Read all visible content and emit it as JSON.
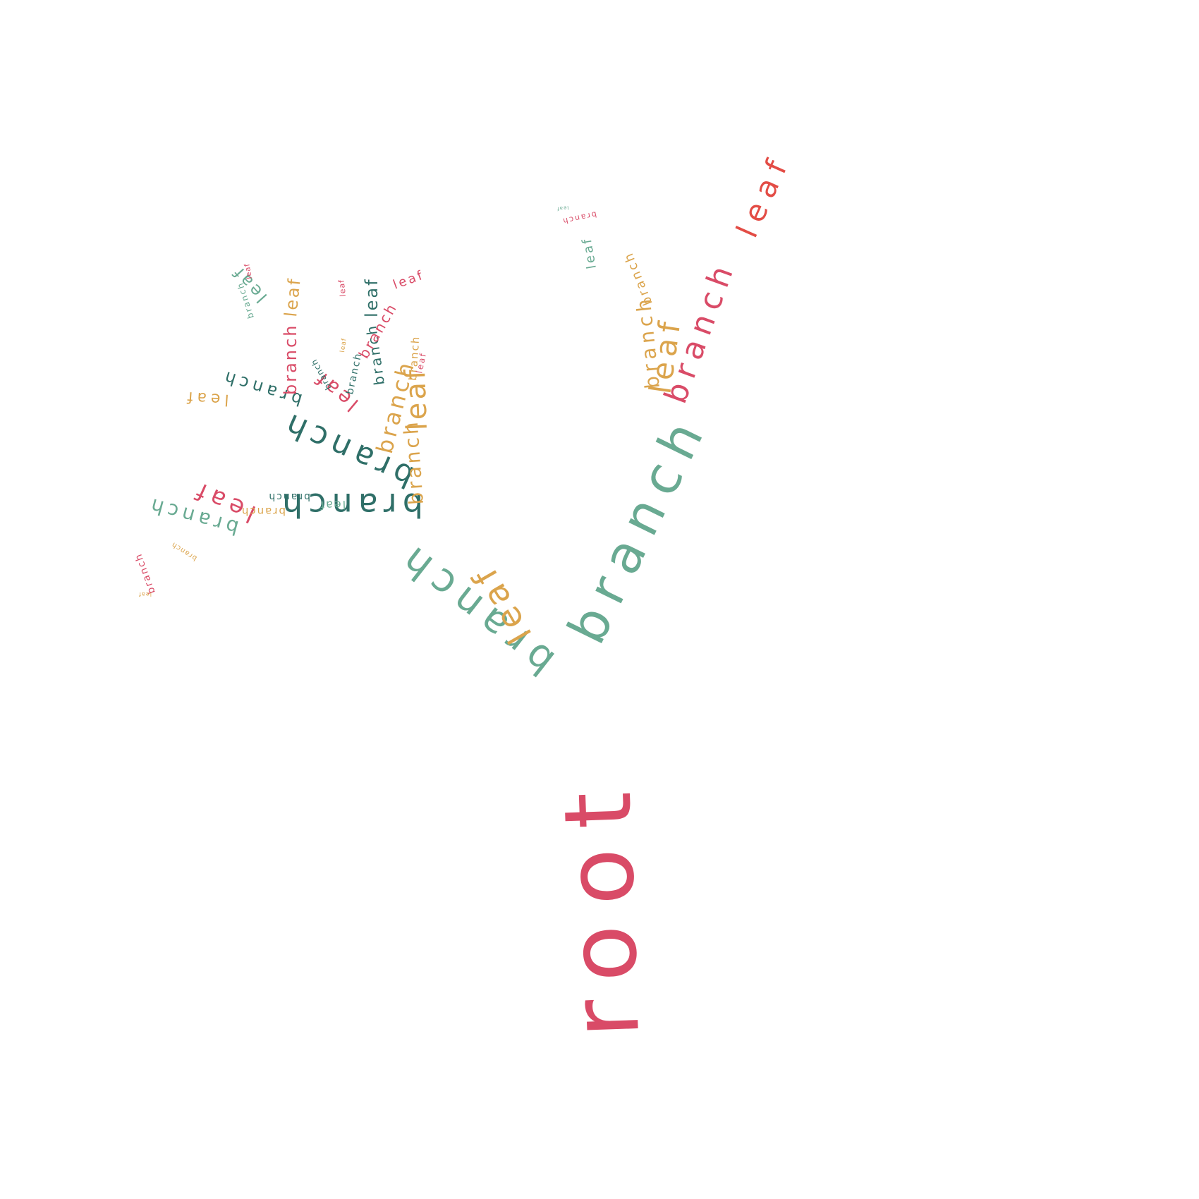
{
  "words": {
    "root": "root",
    "branch": "branch",
    "leaf": "leaf"
  },
  "colors": {
    "background": "#ffffff",
    "crimson": "#d94b67",
    "teal_dark": "#2f6f68",
    "green": "#69aa92",
    "mustard": "#dba44c",
    "red": "#e34c45"
  }
}
